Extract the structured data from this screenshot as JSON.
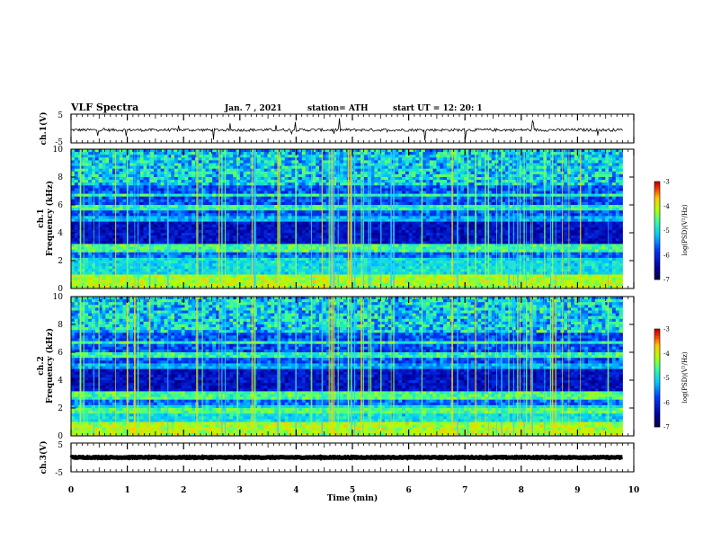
{
  "header": {
    "title": "VLF Spectra",
    "date": "Jan. 7 , 2021",
    "station": "station= ATH",
    "start": "start UT = 12: 20: 1"
  },
  "chart_data": [
    {
      "type": "line",
      "name": "ch1-waveform",
      "ylabel": "ch.1(V)",
      "ylim": [
        -5,
        5
      ],
      "yticks": [
        "5",
        "-5"
      ],
      "xlim": [
        0,
        10
      ],
      "baseline": -0.5,
      "noise_amplitude": 1.0
    },
    {
      "type": "heatmap",
      "name": "ch1-spectrogram",
      "ylabel": "ch.1 Frequency (kHz)",
      "ylabel_line1": "ch.1",
      "ylabel_line2": "Frequency (kHz)",
      "ylim": [
        0,
        10
      ],
      "yticks": [
        "0",
        "2",
        "4",
        "6",
        "8",
        "10"
      ],
      "xlim": [
        0,
        9.8
      ],
      "colorbar": {
        "label": "log(PSD)(V²/Hz)",
        "range": [
          -7,
          -3
        ],
        "ticks": [
          "-3",
          "-4",
          "-5",
          "-6",
          "-7"
        ]
      }
    },
    {
      "type": "heatmap",
      "name": "ch2-spectrogram",
      "ylabel": "ch.2 Frequency (kHz)",
      "ylabel_line1": "ch.2",
      "ylabel_line2": "Frequency (kHz)",
      "ylim": [
        0,
        10
      ],
      "yticks": [
        "0",
        "2",
        "4",
        "6",
        "8",
        "10"
      ],
      "xlim": [
        0,
        9.8
      ],
      "colorbar": {
        "label": "log(PSD)(V²/Hz)",
        "range": [
          -7,
          -3
        ],
        "ticks": [
          "-3",
          "-4",
          "-5",
          "-6",
          "-7"
        ]
      }
    },
    {
      "type": "line",
      "name": "ch3-waveform",
      "ylabel": "ch.3(V)",
      "ylim": [
        -5,
        5
      ],
      "yticks": [
        "5",
        "-5"
      ],
      "xlim": [
        0,
        10
      ],
      "baseline": 0,
      "noise_amplitude": 0.3
    }
  ],
  "xaxis": {
    "label": "Time (min)",
    "range": [
      0,
      10
    ],
    "ticks": [
      "0",
      "1",
      "2",
      "3",
      "4",
      "5",
      "6",
      "7",
      "8",
      "9",
      "10"
    ]
  }
}
